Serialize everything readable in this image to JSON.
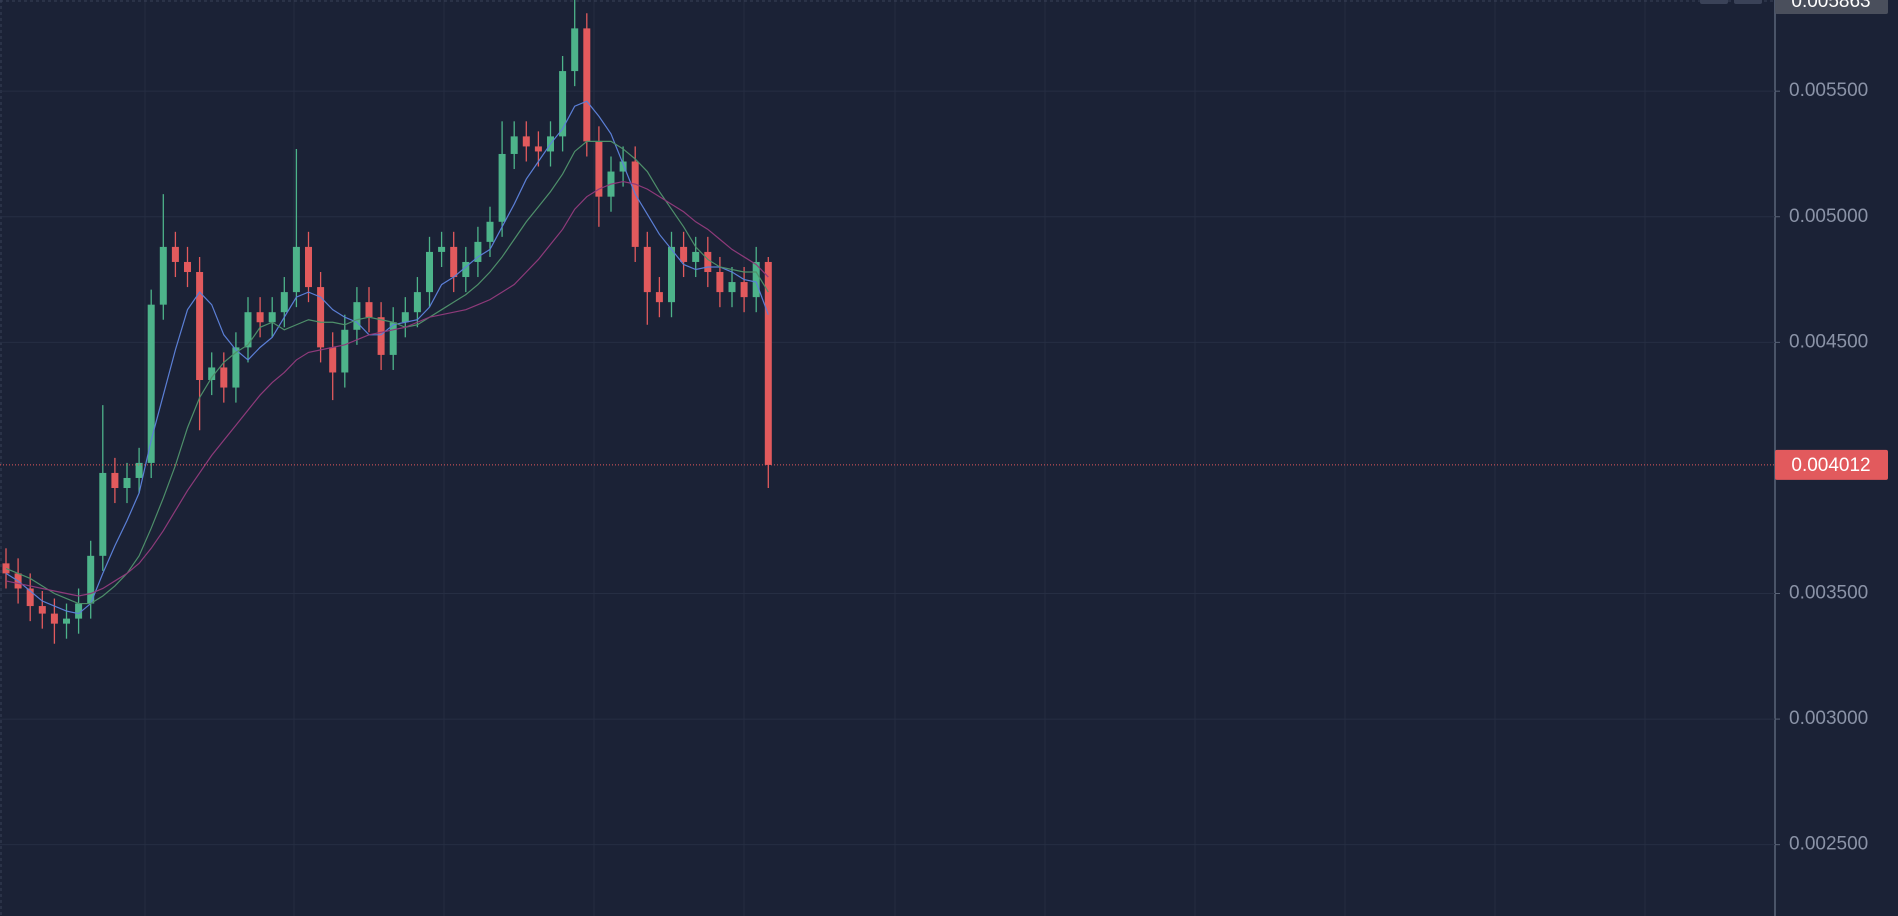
{
  "chart_data": {
    "type": "candlestick",
    "open": [
      0.00362,
      0.00358,
      0.00352,
      0.00345,
      0.00342,
      0.00338,
      0.0034,
      0.00346,
      0.00365,
      0.00398,
      0.00392,
      0.00396,
      0.00402,
      0.00465,
      0.00488,
      0.00482,
      0.00478,
      0.00435,
      0.0044,
      0.00432,
      0.00448,
      0.00462,
      0.00458,
      0.00462,
      0.0047,
      0.00488,
      0.00472,
      0.00448,
      0.00438,
      0.00455,
      0.00466,
      0.0046,
      0.00445,
      0.00458,
      0.00462,
      0.0047,
      0.00486,
      0.00488,
      0.00476,
      0.00482,
      0.0049,
      0.00498,
      0.00525,
      0.00532,
      0.00528,
      0.00526,
      0.00532,
      0.00558,
      0.00575,
      0.0053,
      0.00508,
      0.00518,
      0.00522,
      0.00488,
      0.0047,
      0.00466,
      0.00488,
      0.00482,
      0.00486,
      0.00478,
      0.0047,
      0.00474,
      0.00468,
      0.00482
    ],
    "high": [
      0.00368,
      0.00364,
      0.00358,
      0.00351,
      0.00348,
      0.00346,
      0.00352,
      0.00371,
      0.00425,
      0.00404,
      0.00402,
      0.00408,
      0.00471,
      0.00509,
      0.00494,
      0.00488,
      0.00484,
      0.00446,
      0.00446,
      0.00454,
      0.00468,
      0.00468,
      0.00468,
      0.00476,
      0.00527,
      0.00494,
      0.00478,
      0.00454,
      0.00461,
      0.00472,
      0.00472,
      0.00466,
      0.00464,
      0.00468,
      0.00476,
      0.00492,
      0.00494,
      0.00494,
      0.00488,
      0.00496,
      0.00504,
      0.00538,
      0.00538,
      0.00538,
      0.00534,
      0.00538,
      0.00564,
      0.005863,
      0.00581,
      0.00536,
      0.00524,
      0.00528,
      0.00528,
      0.00494,
      0.00476,
      0.00494,
      0.00494,
      0.00492,
      0.00492,
      0.00484,
      0.0048,
      0.0048,
      0.00488,
      0.00484
    ],
    "low": [
      0.00352,
      0.00346,
      0.00339,
      0.00336,
      0.0033,
      0.00332,
      0.00334,
      0.0034,
      0.00359,
      0.00386,
      0.00386,
      0.0039,
      0.00396,
      0.00459,
      0.00476,
      0.00472,
      0.00415,
      0.00429,
      0.00426,
      0.00426,
      0.00442,
      0.00452,
      0.00452,
      0.00456,
      0.00464,
      0.00466,
      0.00442,
      0.00427,
      0.00432,
      0.00449,
      0.00454,
      0.00439,
      0.00439,
      0.00452,
      0.00456,
      0.00464,
      0.0048,
      0.0047,
      0.0047,
      0.00476,
      0.00484,
      0.00492,
      0.00519,
      0.00522,
      0.0052,
      0.0052,
      0.00526,
      0.00552,
      0.00524,
      0.00496,
      0.00502,
      0.00512,
      0.00482,
      0.00457,
      0.0046,
      0.0046,
      0.00476,
      0.00476,
      0.00472,
      0.00464,
      0.00464,
      0.00462,
      0.00462,
      0.00392
    ],
    "close": [
      0.00358,
      0.00352,
      0.00345,
      0.00342,
      0.00338,
      0.0034,
      0.00346,
      0.00365,
      0.00398,
      0.00392,
      0.00396,
      0.00402,
      0.00465,
      0.00488,
      0.00482,
      0.00478,
      0.00435,
      0.0044,
      0.00432,
      0.00448,
      0.00462,
      0.00458,
      0.00462,
      0.0047,
      0.00488,
      0.00472,
      0.00448,
      0.00438,
      0.00455,
      0.00466,
      0.0046,
      0.00445,
      0.00458,
      0.00462,
      0.0047,
      0.00486,
      0.00488,
      0.00476,
      0.00482,
      0.0049,
      0.00498,
      0.00525,
      0.00532,
      0.00528,
      0.00526,
      0.00532,
      0.00558,
      0.00575,
      0.0053,
      0.00508,
      0.00518,
      0.00522,
      0.00488,
      0.0047,
      0.00466,
      0.00488,
      0.00482,
      0.00486,
      0.00478,
      0.0047,
      0.00474,
      0.00468,
      0.00482,
      0.004012
    ],
    "up_color": "#4db38a",
    "down_color": "#e25a5d",
    "moving_averages": [
      {
        "color": "#5b7fd6",
        "values": [
          0.00358,
          0.00355,
          0.00351,
          0.00347,
          0.00345,
          0.00343,
          0.00342,
          0.00346,
          0.00358,
          0.00369,
          0.00379,
          0.0039,
          0.00411,
          0.00429,
          0.00447,
          0.00463,
          0.0047,
          0.00465,
          0.00453,
          0.00447,
          0.00443,
          0.00448,
          0.00452,
          0.0046,
          0.00468,
          0.0047,
          0.00468,
          0.00463,
          0.0046,
          0.00458,
          0.00453,
          0.00453,
          0.00457,
          0.00458,
          0.00459,
          0.00464,
          0.00473,
          0.00476,
          0.0048,
          0.00484,
          0.00487,
          0.00496,
          0.00505,
          0.00515,
          0.00522,
          0.00529,
          0.00535,
          0.00544,
          0.00546,
          0.0054,
          0.00533,
          0.00521,
          0.00509,
          0.00501,
          0.00493,
          0.00487,
          0.00481,
          0.00479,
          0.0048,
          0.0048,
          0.00478,
          0.00475,
          0.00474,
          0.00461
        ]
      },
      {
        "color": "#4e8f6a",
        "values": [
          0.0036,
          0.00358,
          0.00356,
          0.00353,
          0.0035,
          0.00348,
          0.00346,
          0.00346,
          0.00349,
          0.00353,
          0.00358,
          0.00365,
          0.00376,
          0.00388,
          0.00401,
          0.00416,
          0.00428,
          0.00436,
          0.00442,
          0.00446,
          0.00449,
          0.00456,
          0.00458,
          0.00455,
          0.00457,
          0.00459,
          0.00458,
          0.00458,
          0.00457,
          0.00459,
          0.0046,
          0.00459,
          0.00458,
          0.00456,
          0.00457,
          0.0046,
          0.00463,
          0.00466,
          0.00469,
          0.00473,
          0.00478,
          0.00484,
          0.00491,
          0.00498,
          0.00504,
          0.0051,
          0.00517,
          0.00526,
          0.0053,
          0.0053,
          0.0053,
          0.00527,
          0.00523,
          0.00518,
          0.0051,
          0.00503,
          0.00496,
          0.00488,
          0.00483,
          0.0048,
          0.00479,
          0.00478,
          0.00478,
          0.0047
        ]
      },
      {
        "color": "#8e3a7a",
        "values": [
          0.00355,
          0.00354,
          0.00353,
          0.00352,
          0.00351,
          0.0035,
          0.00349,
          0.0035,
          0.00352,
          0.00355,
          0.00358,
          0.00362,
          0.00368,
          0.00375,
          0.00383,
          0.00391,
          0.00398,
          0.00405,
          0.00411,
          0.00417,
          0.00423,
          0.00429,
          0.00434,
          0.00438,
          0.00443,
          0.00446,
          0.00447,
          0.00448,
          0.00449,
          0.00451,
          0.00453,
          0.00454,
          0.00455,
          0.00456,
          0.00458,
          0.0046,
          0.00461,
          0.00462,
          0.00463,
          0.00465,
          0.00467,
          0.0047,
          0.00473,
          0.00478,
          0.00483,
          0.00489,
          0.00495,
          0.00503,
          0.00508,
          0.00511,
          0.00513,
          0.00514,
          0.00513,
          0.00511,
          0.00508,
          0.00505,
          0.00502,
          0.00498,
          0.00495,
          0.00491,
          0.00487,
          0.00484,
          0.00481,
          0.00476
        ]
      }
    ],
    "ylim": [
      0.002216,
      0.005863
    ],
    "yticks": [
      {
        "value": 0.0025,
        "label": "0.002500"
      },
      {
        "value": 0.003,
        "label": "0.003000"
      },
      {
        "value": 0.0035,
        "label": "0.003500"
      },
      {
        "value": 0.0045,
        "label": "0.004500"
      },
      {
        "value": 0.005,
        "label": "0.005000"
      },
      {
        "value": 0.0055,
        "label": "0.005500"
      }
    ],
    "grid": true,
    "last_price": 0.004012,
    "max_price": 0.005863
  }
}
